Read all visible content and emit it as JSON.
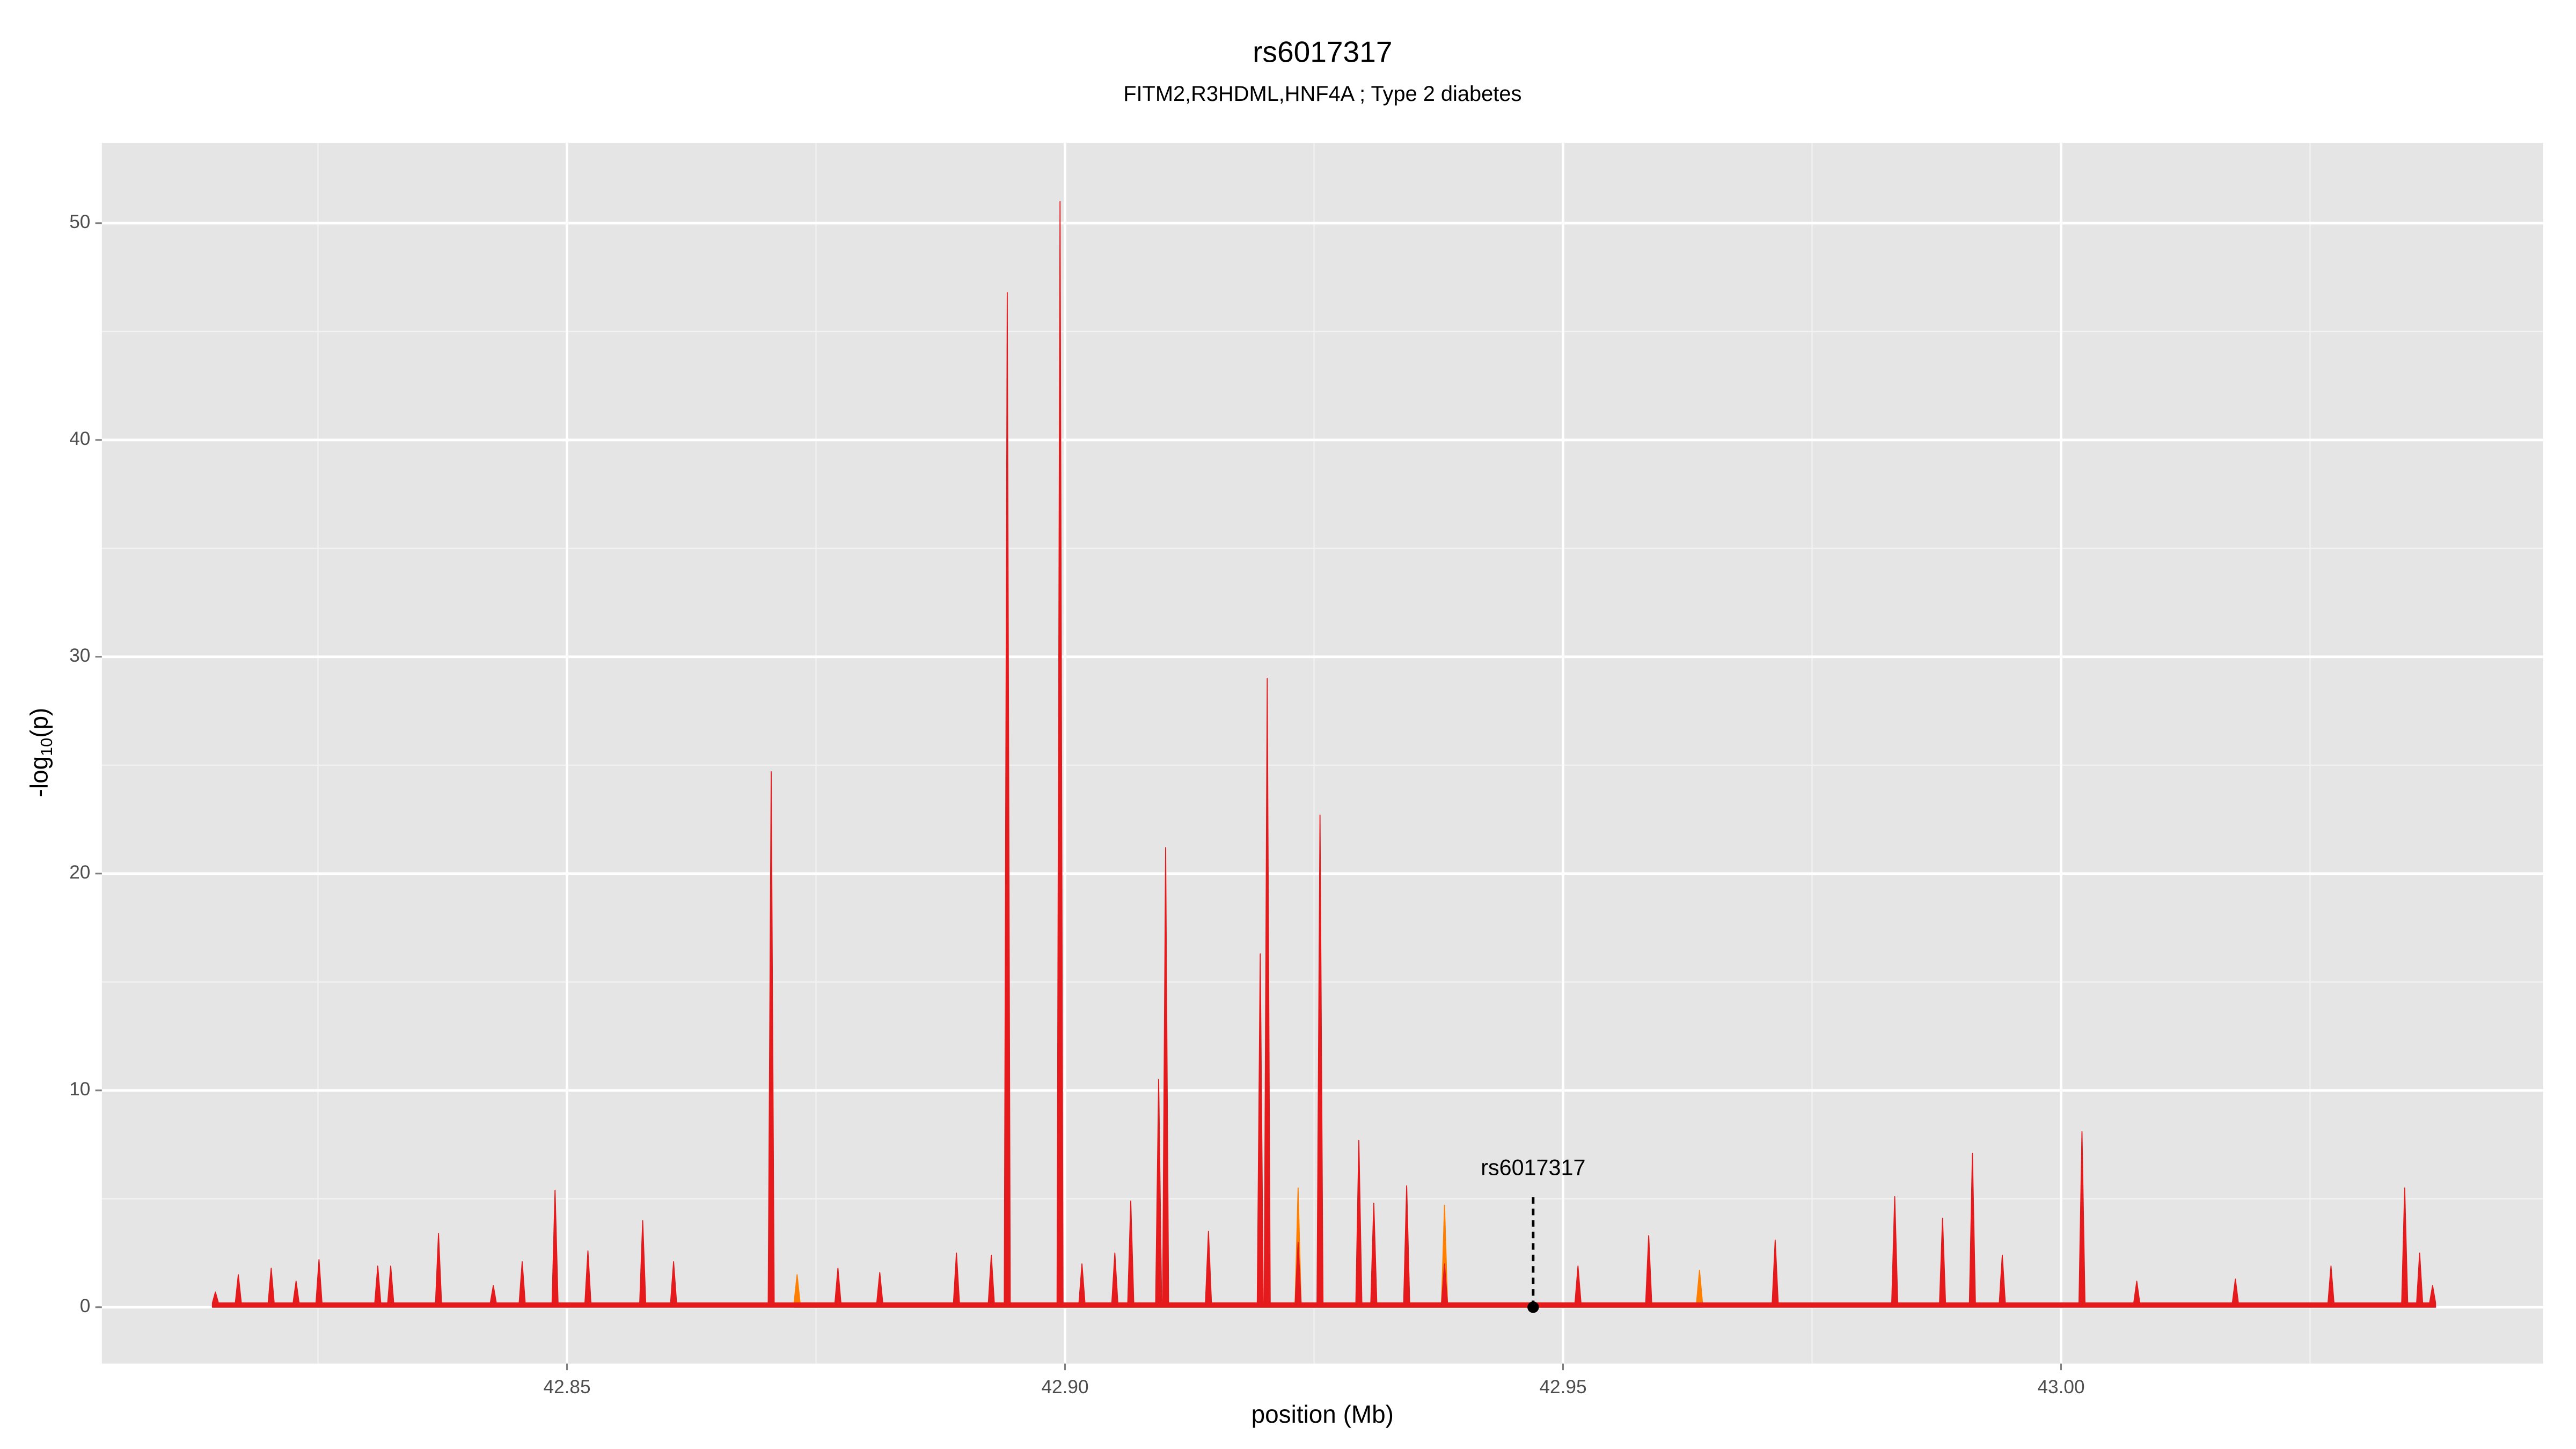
{
  "chart_data": {
    "type": "area",
    "title": "rs6017317",
    "subtitle": "FITM2,R3HDML,HNF4A ; Type 2 diabetes",
    "xlabel": "position (Mb)",
    "ylabel": {
      "prefix": "-log",
      "sub": "10",
      "suffix": "(p)"
    },
    "xlim": [
      42.8033,
      43.0484
    ],
    "ylim": [
      -2.6,
      53.7
    ],
    "xticks": [
      {
        "value": 42.85,
        "label": "42.85"
      },
      {
        "value": 42.9,
        "label": "42.90"
      },
      42.95,
      {
        "value": 43,
        "label": "43.00"
      }
    ],
    "yticks": [
      0,
      10,
      20,
      30,
      40,
      50
    ],
    "minor_xticks": [
      42.825,
      42.875,
      42.925,
      42.975,
      43.025
    ],
    "minor_yticks": [
      5,
      15,
      25,
      35,
      45
    ],
    "grid": true,
    "background": "#e5e5e5",
    "series": [
      {
        "name": "orange",
        "color": "#ff7f00",
        "x": [
          42.8728,
          42.8731,
          42.8734,
          42.9231,
          42.9234,
          42.9237,
          42.9378,
          42.9381,
          42.9384,
          42.9634,
          42.9637,
          42.964
        ],
        "values": [
          0.2,
          1.5,
          0.2,
          0.2,
          5.5,
          0.2,
          0.2,
          4.7,
          0.2,
          0.2,
          1.7,
          0.2
        ]
      },
      {
        "name": "red",
        "color": "#e41a1c",
        "x": [
          42.8144,
          42.8147,
          42.815,
          42.8167,
          42.817,
          42.8173,
          42.82,
          42.8203,
          42.8206,
          42.8225,
          42.8228,
          42.8231,
          42.8248,
          42.8251,
          42.8254,
          42.8307,
          42.831,
          42.8313,
          42.832,
          42.8323,
          42.8326,
          42.8368,
          42.8371,
          42.8374,
          42.8423,
          42.8426,
          42.8429,
          42.8452,
          42.8455,
          42.8458,
          42.8485,
          42.8488,
          42.8491,
          42.8518,
          42.8521,
          42.8524,
          42.8573,
          42.8576,
          42.8579,
          42.8604,
          42.8607,
          42.861,
          42.8702,
          42.8705,
          42.8708,
          42.8769,
          42.8772,
          42.8775,
          42.8811,
          42.8814,
          42.8817,
          42.8888,
          42.8891,
          42.8894,
          42.8923,
          42.8926,
          42.8929,
          42.8939,
          42.8942,
          42.8945,
          42.8992,
          42.8995,
          42.8998,
          42.9014,
          42.9017,
          42.902,
          42.9047,
          42.905,
          42.9053,
          42.9063,
          42.9066,
          42.9069,
          42.9091,
          42.9094,
          42.9097,
          42.9098,
          42.9101,
          42.9104,
          42.9141,
          42.9144,
          42.9147,
          42.9193,
          42.9196,
          42.9199,
          42.92,
          42.9203,
          42.9206,
          42.9231,
          42.9234,
          42.9237,
          42.9253,
          42.9256,
          42.9259,
          42.9292,
          42.9295,
          42.9298,
          42.9307,
          42.931,
          42.9313,
          42.934,
          42.9343,
          42.9346,
          42.9378,
          42.9381,
          42.9384,
          42.9512,
          42.9515,
          42.9518,
          42.9583,
          42.9586,
          42.9589,
          42.971,
          42.9713,
          42.9716,
          42.983,
          42.9833,
          42.9836,
          42.9878,
          42.9881,
          42.9884,
          42.9908,
          42.9911,
          42.9914,
          42.9938,
          42.9941,
          42.9944,
          43.0018,
          43.0021,
          43.0024,
          43.0073,
          43.0076,
          43.0079,
          43.0172,
          43.0175,
          43.0178,
          43.0268,
          43.0271,
          43.0274,
          43.0342,
          43.0345,
          43.0348,
          43.0357,
          43.036,
          43.0363,
          43.037,
          43.0373,
          43.0376
        ],
        "values": [
          0.2,
          0.7,
          0.2,
          0.2,
          1.5,
          0.2,
          0.2,
          1.8,
          0.2,
          0.2,
          1.2,
          0.2,
          0.2,
          2.2,
          0.2,
          0.2,
          1.9,
          0.2,
          0.2,
          1.9,
          0.2,
          0.2,
          3.4,
          0.2,
          0.2,
          1.0,
          0.2,
          0.2,
          2.1,
          0.2,
          0.2,
          5.4,
          0.2,
          0.2,
          2.6,
          0.2,
          0.2,
          4.0,
          0.2,
          0.2,
          2.1,
          0.2,
          0.2,
          24.7,
          0.2,
          0.2,
          1.8,
          0.2,
          0.2,
          1.6,
          0.2,
          0.2,
          2.5,
          0.2,
          0.2,
          2.4,
          0.2,
          0.2,
          46.8,
          0.2,
          0.2,
          51.0,
          0.2,
          0.2,
          2.0,
          0.2,
          0.2,
          2.5,
          0.2,
          0.2,
          4.9,
          0.2,
          0.2,
          10.5,
          0.2,
          0.2,
          21.2,
          0.2,
          0.2,
          3.5,
          0.2,
          0.2,
          16.3,
          0.2,
          0.2,
          29.0,
          0.2,
          0.2,
          3.0,
          0.2,
          0.2,
          22.7,
          0.2,
          0.2,
          7.7,
          0.2,
          0.2,
          4.8,
          0.2,
          0.2,
          5.6,
          0.2,
          0.2,
          2.0,
          0.2,
          0.2,
          1.9,
          0.2,
          0.2,
          3.3,
          0.2,
          0.2,
          3.1,
          0.2,
          0.2,
          5.1,
          0.2,
          0.2,
          4.1,
          0.2,
          0.2,
          7.1,
          0.2,
          0.2,
          2.4,
          0.2,
          0.2,
          8.1,
          0.2,
          0.2,
          1.2,
          0.2,
          0.2,
          1.3,
          0.2,
          0.2,
          1.9,
          0.2,
          0.2,
          5.5,
          0.2,
          0.2,
          2.5,
          0.2,
          0.2,
          1.0,
          0.2
        ]
      }
    ],
    "annotation": {
      "label": "rs6017317",
      "x": 42.947,
      "y": 0
    }
  }
}
